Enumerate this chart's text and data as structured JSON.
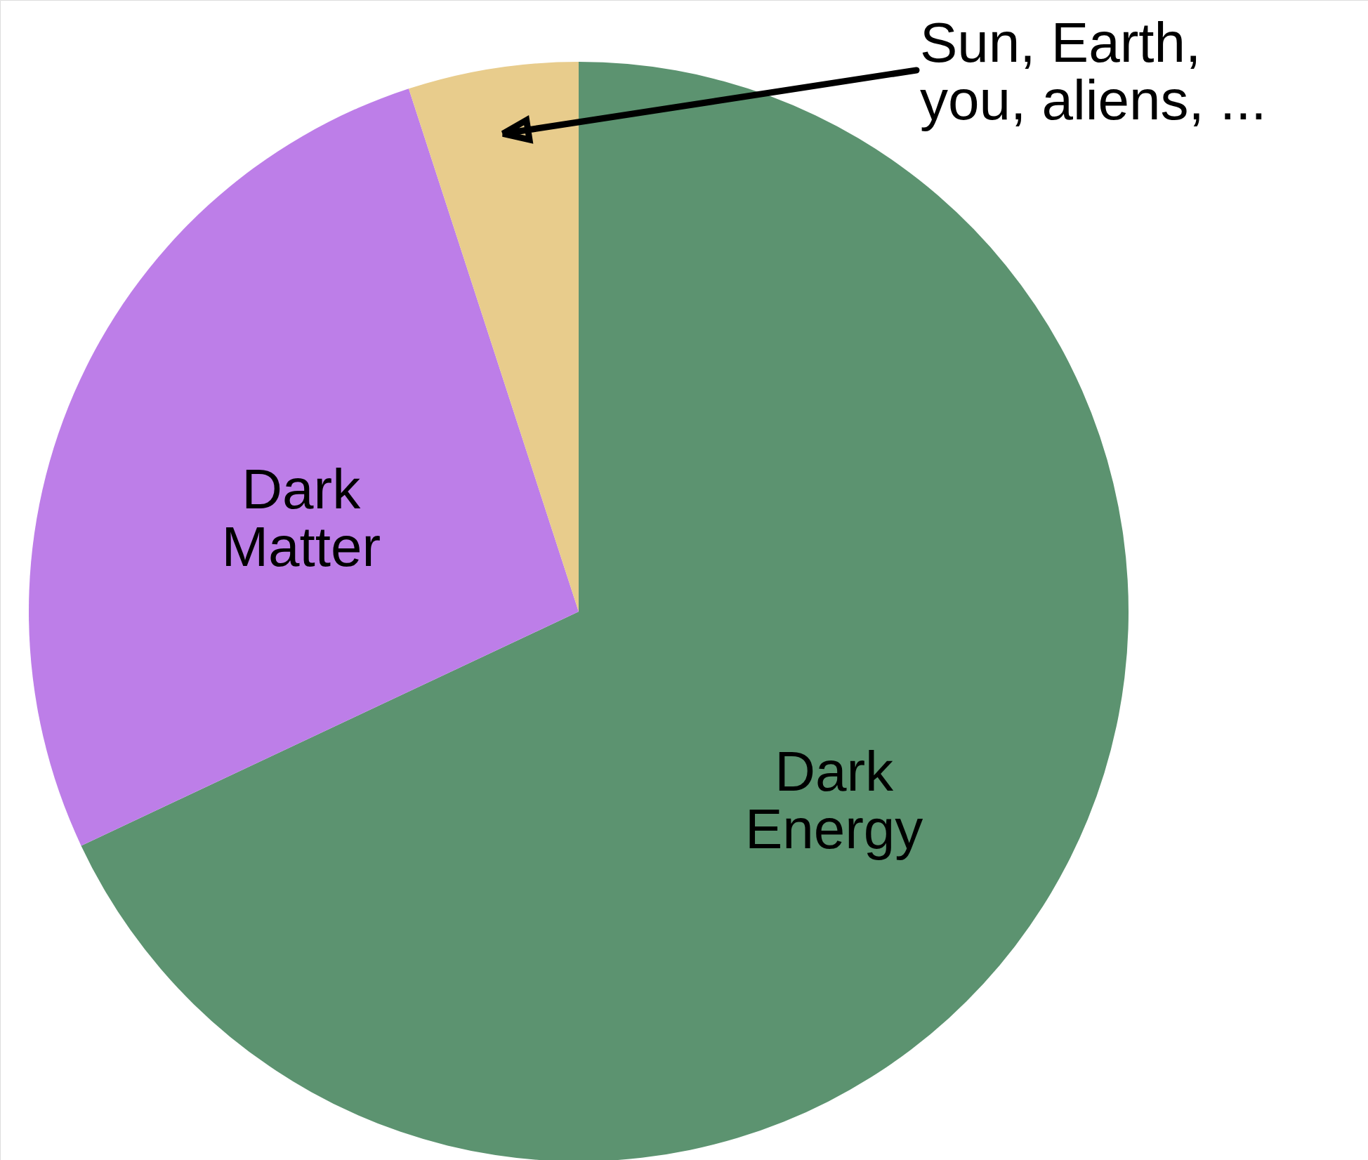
{
  "chart_data": {
    "type": "pie",
    "categories": [
      "Dark\nEnergy",
      "Dark\nMatter",
      "Sun, Earth,\nyou, aliens, ..."
    ],
    "values": [
      68,
      27,
      5
    ],
    "colors": [
      "#5c9370",
      "#bd7ee8",
      "#e8cc8c"
    ]
  }
}
